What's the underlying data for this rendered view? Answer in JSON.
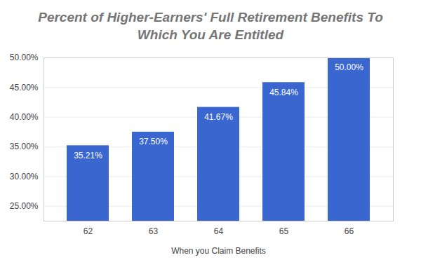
{
  "chart_data": {
    "type": "bar",
    "title": "Percent of Higher-Earners' Full Retirement Benefits To Which You Are Entitled",
    "x_label": "When you Claim Benefits",
    "categories": [
      "62",
      "63",
      "64",
      "65",
      "66"
    ],
    "values": [
      35.21,
      37.5,
      41.67,
      45.84,
      50
    ],
    "value_labels": [
      "35.21%",
      "37.50%",
      "41.67%",
      "45.84%",
      "50.00%"
    ],
    "color": "#3a66cf",
    "ylim": [
      22.5,
      50
    ],
    "yticks": [
      {
        "value": 25,
        "label": "25.00%"
      },
      {
        "value": 30,
        "label": "30.00%"
      },
      {
        "value": 35,
        "label": "35.00%"
      },
      {
        "value": 40,
        "label": "40.00%"
      },
      {
        "value": 45,
        "label": "45.00%"
      },
      {
        "value": 50,
        "label": "50.00%"
      }
    ],
    "grid": true,
    "data_labels": true
  }
}
